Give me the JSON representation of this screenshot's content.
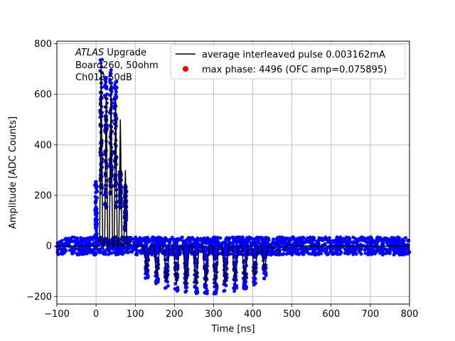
{
  "chart_data": {
    "type": "scatter",
    "title": "",
    "xlabel": "Time [ns]",
    "ylabel": "Amplitude [ADC Counts]",
    "xlim": [
      -100,
      800
    ],
    "ylim": [
      -230,
      810
    ],
    "x_ticks": [
      -100,
      0,
      100,
      200,
      300,
      400,
      500,
      600,
      700,
      800
    ],
    "y_ticks": [
      -200,
      0,
      200,
      400,
      600,
      800
    ],
    "grid": true,
    "legend_position": "top-right",
    "annotation": {
      "italic": "ATLAS",
      "line1_rest": " Upgrade",
      "line2": " Board260, 50ohm",
      "line3": " Ch013 50dB"
    },
    "legend": [
      {
        "label": "average interleaved pulse 0.003162mA",
        "marker": "line",
        "color": "#000000"
      },
      {
        "label": "max phase: 4496 (OFC amp=0.075895)",
        "marker": "dot",
        "color": "#ff0000"
      }
    ],
    "series": [
      {
        "role": "samples",
        "color": "#0000ff",
        "noise_amplitude": 35,
        "x_range": [
          -100,
          800
        ]
      },
      {
        "role": "average-pulse",
        "color": "#000000",
        "spikes": [
          {
            "x": 13,
            "y": 700
          },
          {
            "x": 26,
            "y": 600
          },
          {
            "x": 38,
            "y": 640
          },
          {
            "x": 50,
            "y": 580
          },
          {
            "x": 62,
            "y": 500
          },
          {
            "x": 75,
            "y": 300
          }
        ],
        "undershoot_x": [
          130,
          155,
          180,
          205,
          230,
          255,
          280,
          305,
          330,
          355,
          380,
          405,
          430
        ],
        "undershoot_y": [
          -100,
          -120,
          -140,
          -150,
          -155,
          -160,
          -160,
          -160,
          -155,
          -150,
          -140,
          -125,
          -100
        ]
      }
    ],
    "cluster_extents": [
      {
        "x": 0,
        "y_low": -10,
        "y_high": 260
      },
      {
        "x": 13,
        "y_low": 200,
        "y_high": 750
      },
      {
        "x": 25,
        "y_low": 150,
        "y_high": 670
      },
      {
        "x": 38,
        "y_low": 200,
        "y_high": 700
      },
      {
        "x": 50,
        "y_low": 150,
        "y_high": 650
      },
      {
        "x": 62,
        "y_low": 150,
        "y_high": 300
      },
      {
        "x": 75,
        "y_low": 60,
        "y_high": 240
      }
    ]
  }
}
